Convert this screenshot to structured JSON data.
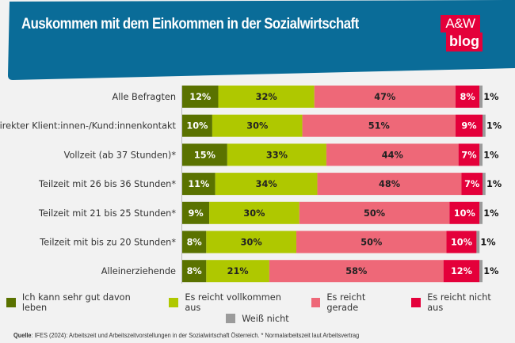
{
  "header": {
    "title": "Auskommen mit dem Einkommen in der Sozialwirtschaft",
    "logo_top": "A&W",
    "logo_bottom": "blog",
    "bg_color": "#0a6c98",
    "logo_color": "#e4003a"
  },
  "chart_data": {
    "type": "bar",
    "orientation": "horizontal",
    "stacked": true,
    "title": "Auskommen mit dem Einkommen in der Sozialwirtschaft",
    "xlabel": "",
    "ylabel": "",
    "xlim": [
      0,
      100
    ],
    "unit": "%",
    "grid": false,
    "legend_position": "bottom",
    "categories": [
      "Alle Befragten",
      "Direkter Klient:innen-/Kund:innenkontakt",
      "Vollzeit (ab 37 Stunden)*",
      "Teilzeit mit 26 bis 36 Stunden*",
      "Teilzeit mit 21 bis 25 Stunden*",
      "Teilzeit mit bis zu 20 Stunden*",
      "Alleinerziehende"
    ],
    "series": [
      {
        "name": "Ich kann sehr gut davon leben",
        "color": "#5a7200",
        "label_color": "#ffffff",
        "values": [
          12,
          10,
          15,
          11,
          9,
          8,
          8
        ]
      },
      {
        "name": "Es reicht vollkommen aus",
        "color": "#afc800",
        "label_color": "#222222",
        "values": [
          32,
          30,
          33,
          34,
          30,
          30,
          21
        ]
      },
      {
        "name": "Es reicht gerade",
        "color": "#ee6878",
        "label_color": "#222222",
        "values": [
          47,
          51,
          44,
          48,
          50,
          50,
          58
        ]
      },
      {
        "name": "Es reicht nicht aus",
        "color": "#e4003a",
        "label_color": "#ffffff",
        "values": [
          8,
          9,
          7,
          7,
          10,
          10,
          12
        ]
      },
      {
        "name": "Weiß nicht",
        "color": "#9b9b9b",
        "label_color": "#222222",
        "values": [
          1,
          1,
          1,
          1,
          1,
          1,
          1
        ]
      }
    ]
  },
  "legend": {
    "row1": [
      "Ich kann sehr gut davon leben",
      "Es reicht vollkommen aus",
      "Es reicht gerade",
      "Es reicht nicht aus"
    ],
    "row2": [
      "Weiß nicht"
    ]
  },
  "source": {
    "label": "Quelle",
    "text": ": IFES (2024): Arbeitszeit und Arbeitszeitvorstellungen in der Sozialwirtschaft Österreich. * Normalarbeitszeit laut Arbeitsvertrag"
  }
}
